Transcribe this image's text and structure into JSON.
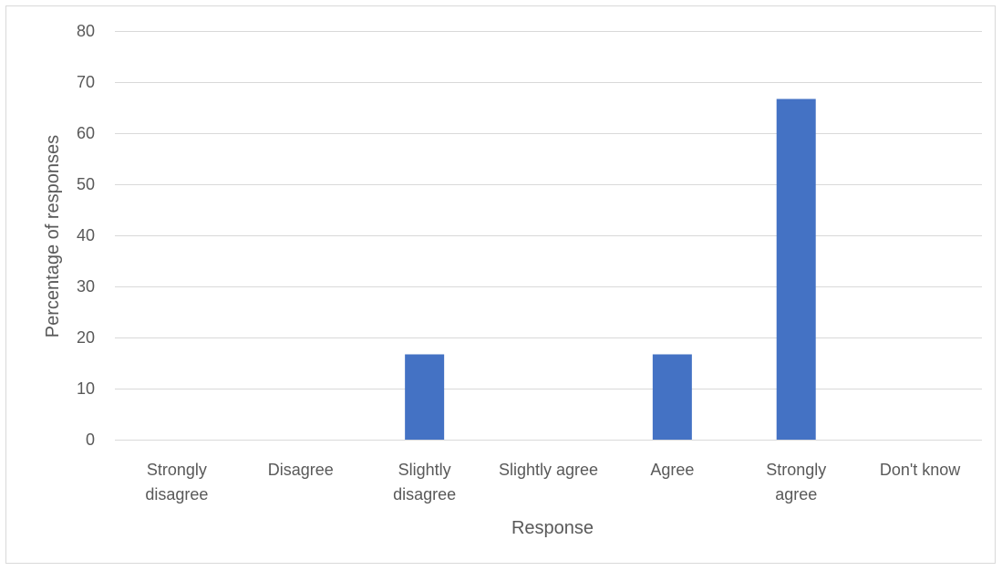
{
  "chart_data": {
    "type": "bar",
    "title": "",
    "xlabel": "Response",
    "ylabel": "Percentage of responses",
    "categories": [
      [
        "Strongly",
        "disagree"
      ],
      [
        "Disagree"
      ],
      [
        "Slightly",
        "disagree"
      ],
      [
        "Slightly agree"
      ],
      [
        "Agree"
      ],
      [
        "Strongly",
        "agree"
      ],
      [
        "Don't know"
      ]
    ],
    "values": [
      0,
      0,
      16.7,
      0,
      16.7,
      66.7,
      0
    ],
    "ylim": [
      0,
      80
    ],
    "yticks": [
      0,
      10,
      20,
      30,
      40,
      50,
      60,
      70,
      80
    ],
    "grid": true,
    "legend": false,
    "bar_color": "#4472c4",
    "grid_color": "#d9d9d9",
    "text_color": "#595959"
  }
}
